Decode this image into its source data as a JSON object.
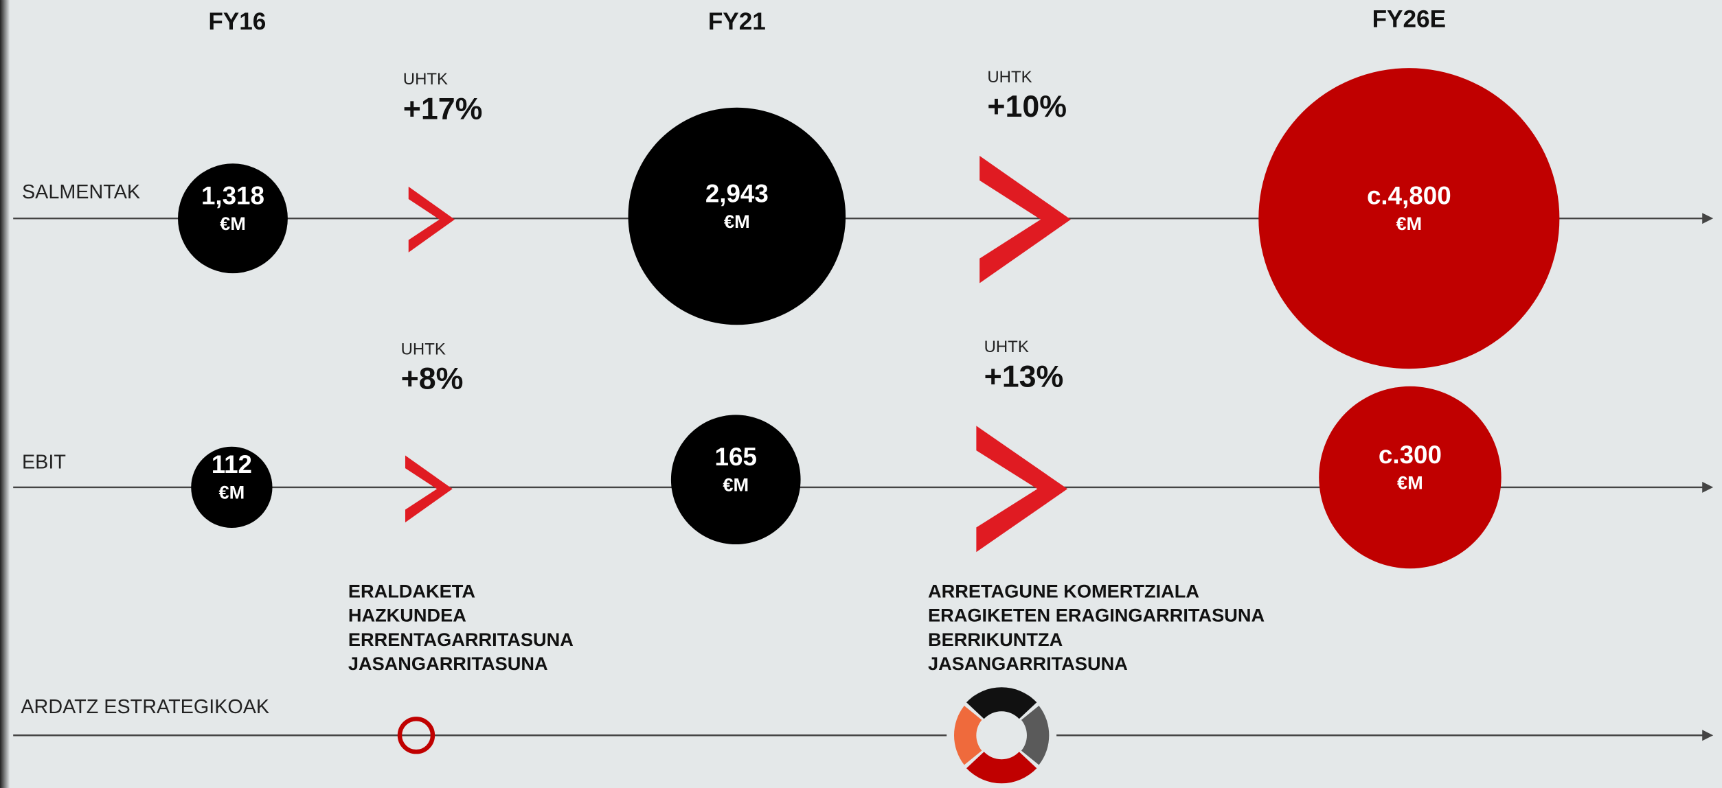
{
  "columns": [
    "FY16",
    "FY21",
    "FY26E"
  ],
  "rows": [
    {
      "label": "SALMENTAK",
      "values": [
        {
          "value": "1,318",
          "unit": "€M"
        },
        {
          "value": "2,943",
          "unit": "€M"
        },
        {
          "value": "c.4,800",
          "unit": "€M"
        }
      ],
      "growth": [
        {
          "label": "UHTK",
          "value": "+17%"
        },
        {
          "label": "UHTK",
          "value": "+10%"
        }
      ]
    },
    {
      "label": "EBIT",
      "values": [
        {
          "value": "112",
          "unit": "€M"
        },
        {
          "value": "165",
          "unit": "€M"
        },
        {
          "value": "c.300",
          "unit": "€M"
        }
      ],
      "growth": [
        {
          "label": "UHTK",
          "value": "+8%"
        },
        {
          "label": "UHTK",
          "value": "+13%"
        }
      ]
    },
    {
      "label": "ARDATZ ESTRATEGIKOAK",
      "focus": [
        [
          "ERALDAKETA",
          "HAZKUNDEA",
          "ERRENTAGARRITASUNA",
          "JASANGARRITASUNA"
        ],
        [
          "ARRETAGUNE KOMERTZIALA",
          "ERAGIKETEN ERAGINGARRITASUNA",
          "BERRIKUNTZA",
          "JASANGARRITASUNA"
        ]
      ]
    }
  ]
}
